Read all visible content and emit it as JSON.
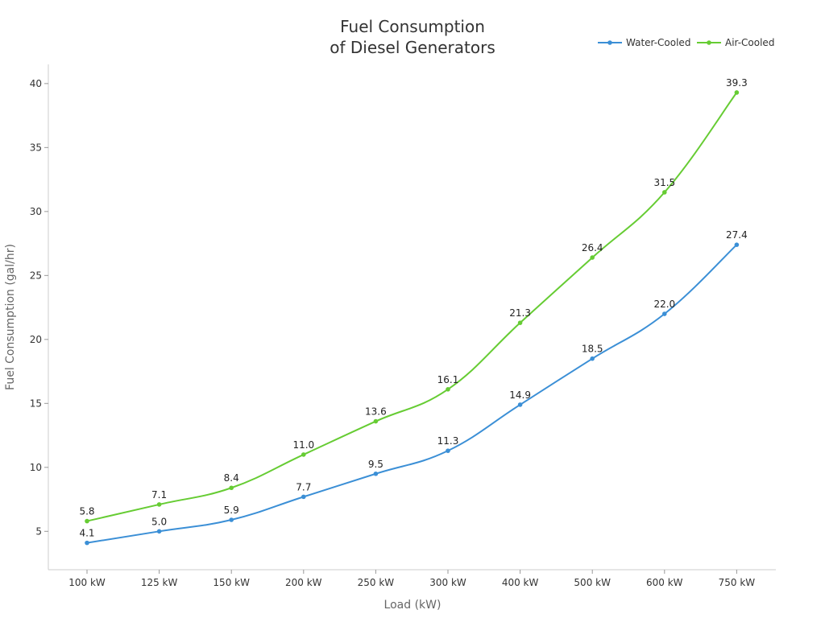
{
  "chart_data": {
    "type": "line",
    "title": [
      "Fuel Consumption",
      "of Diesel Generators"
    ],
    "xlabel": "Load (kW)",
    "ylabel": "Fuel Consumption (gal/hr)",
    "categories": [
      "100 kW",
      "125 kW",
      "150 kW",
      "200 kW",
      "250 kW",
      "300 kW",
      "400 kW",
      "500 kW",
      "600 kW",
      "750 kW"
    ],
    "yticks": [
      5,
      10,
      15,
      20,
      25,
      30,
      35,
      40
    ],
    "ylim": [
      2,
      41.5
    ],
    "grid": false,
    "legend_position": "top-right",
    "series": [
      {
        "name": "Water-Cooled",
        "color": "#3b8fd6",
        "values": [
          4.1,
          5.0,
          5.9,
          7.7,
          9.5,
          11.3,
          14.9,
          18.5,
          22.0,
          27.4
        ],
        "labels": [
          "4.1",
          "5.0",
          "5.9",
          "7.7",
          "9.5",
          "11.3",
          "14.9",
          "18.5",
          "22.0",
          "27.4"
        ]
      },
      {
        "name": "Air-Cooled",
        "color": "#66cc33",
        "values": [
          5.8,
          7.1,
          8.4,
          11.0,
          13.6,
          16.1,
          21.3,
          26.4,
          31.5,
          39.3
        ],
        "labels": [
          "5.8",
          "7.1",
          "8.4",
          "11.0",
          "13.6",
          "16.1",
          "21.3",
          "26.4",
          "31.5",
          "39.3"
        ]
      }
    ]
  }
}
